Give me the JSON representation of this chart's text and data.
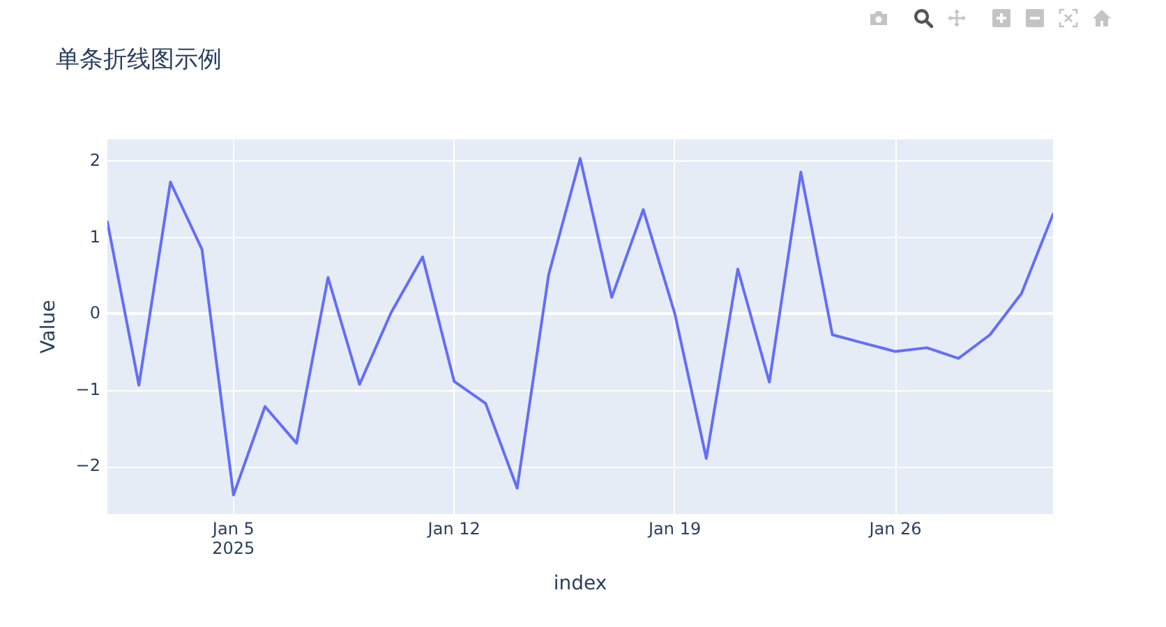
{
  "chart_data": {
    "type": "line",
    "title": "单条折线图示例",
    "xlabel": "index",
    "ylabel": "Value",
    "x": [
      "2025-01-01",
      "2025-01-02",
      "2025-01-03",
      "2025-01-04",
      "2025-01-05",
      "2025-01-06",
      "2025-01-07",
      "2025-01-08",
      "2025-01-09",
      "2025-01-10",
      "2025-01-11",
      "2025-01-12",
      "2025-01-13",
      "2025-01-14",
      "2025-01-15",
      "2025-01-16",
      "2025-01-17",
      "2025-01-18",
      "2025-01-19",
      "2025-01-20",
      "2025-01-21",
      "2025-01-22",
      "2025-01-23",
      "2025-01-24",
      "2025-01-25",
      "2025-01-26",
      "2025-01-27",
      "2025-01-28",
      "2025-01-29",
      "2025-01-30",
      "2025-01-31"
    ],
    "values": [
      1.21,
      -0.93,
      1.73,
      0.85,
      -2.37,
      -1.21,
      -1.69,
      0.48,
      -0.92,
      0.02,
      0.75,
      -0.88,
      -1.17,
      -2.28,
      0.52,
      2.04,
      0.22,
      1.37,
      0.01,
      -1.89,
      0.59,
      -0.89,
      1.86,
      -0.27,
      -0.38,
      -0.49,
      -0.44,
      -0.58,
      -0.27,
      0.27,
      1.31
    ],
    "color": "#636efa",
    "line_style": "solid",
    "xlim": [
      "2025-01-01",
      "2025-01-31"
    ],
    "xticks": [
      {
        "value": "2025-01-05",
        "label": "Jan 5\n2025"
      },
      {
        "value": "2025-01-12",
        "label": "Jan 12"
      },
      {
        "value": "2025-01-19",
        "label": "Jan 19"
      },
      {
        "value": "2025-01-26",
        "label": "Jan 26"
      }
    ],
    "ylim": [
      -2.62,
      2.29
    ],
    "yticks": [
      {
        "value": -2,
        "label": "−2"
      },
      {
        "value": -1,
        "label": "−1"
      },
      0,
      1,
      2
    ],
    "grid": true
  }
}
